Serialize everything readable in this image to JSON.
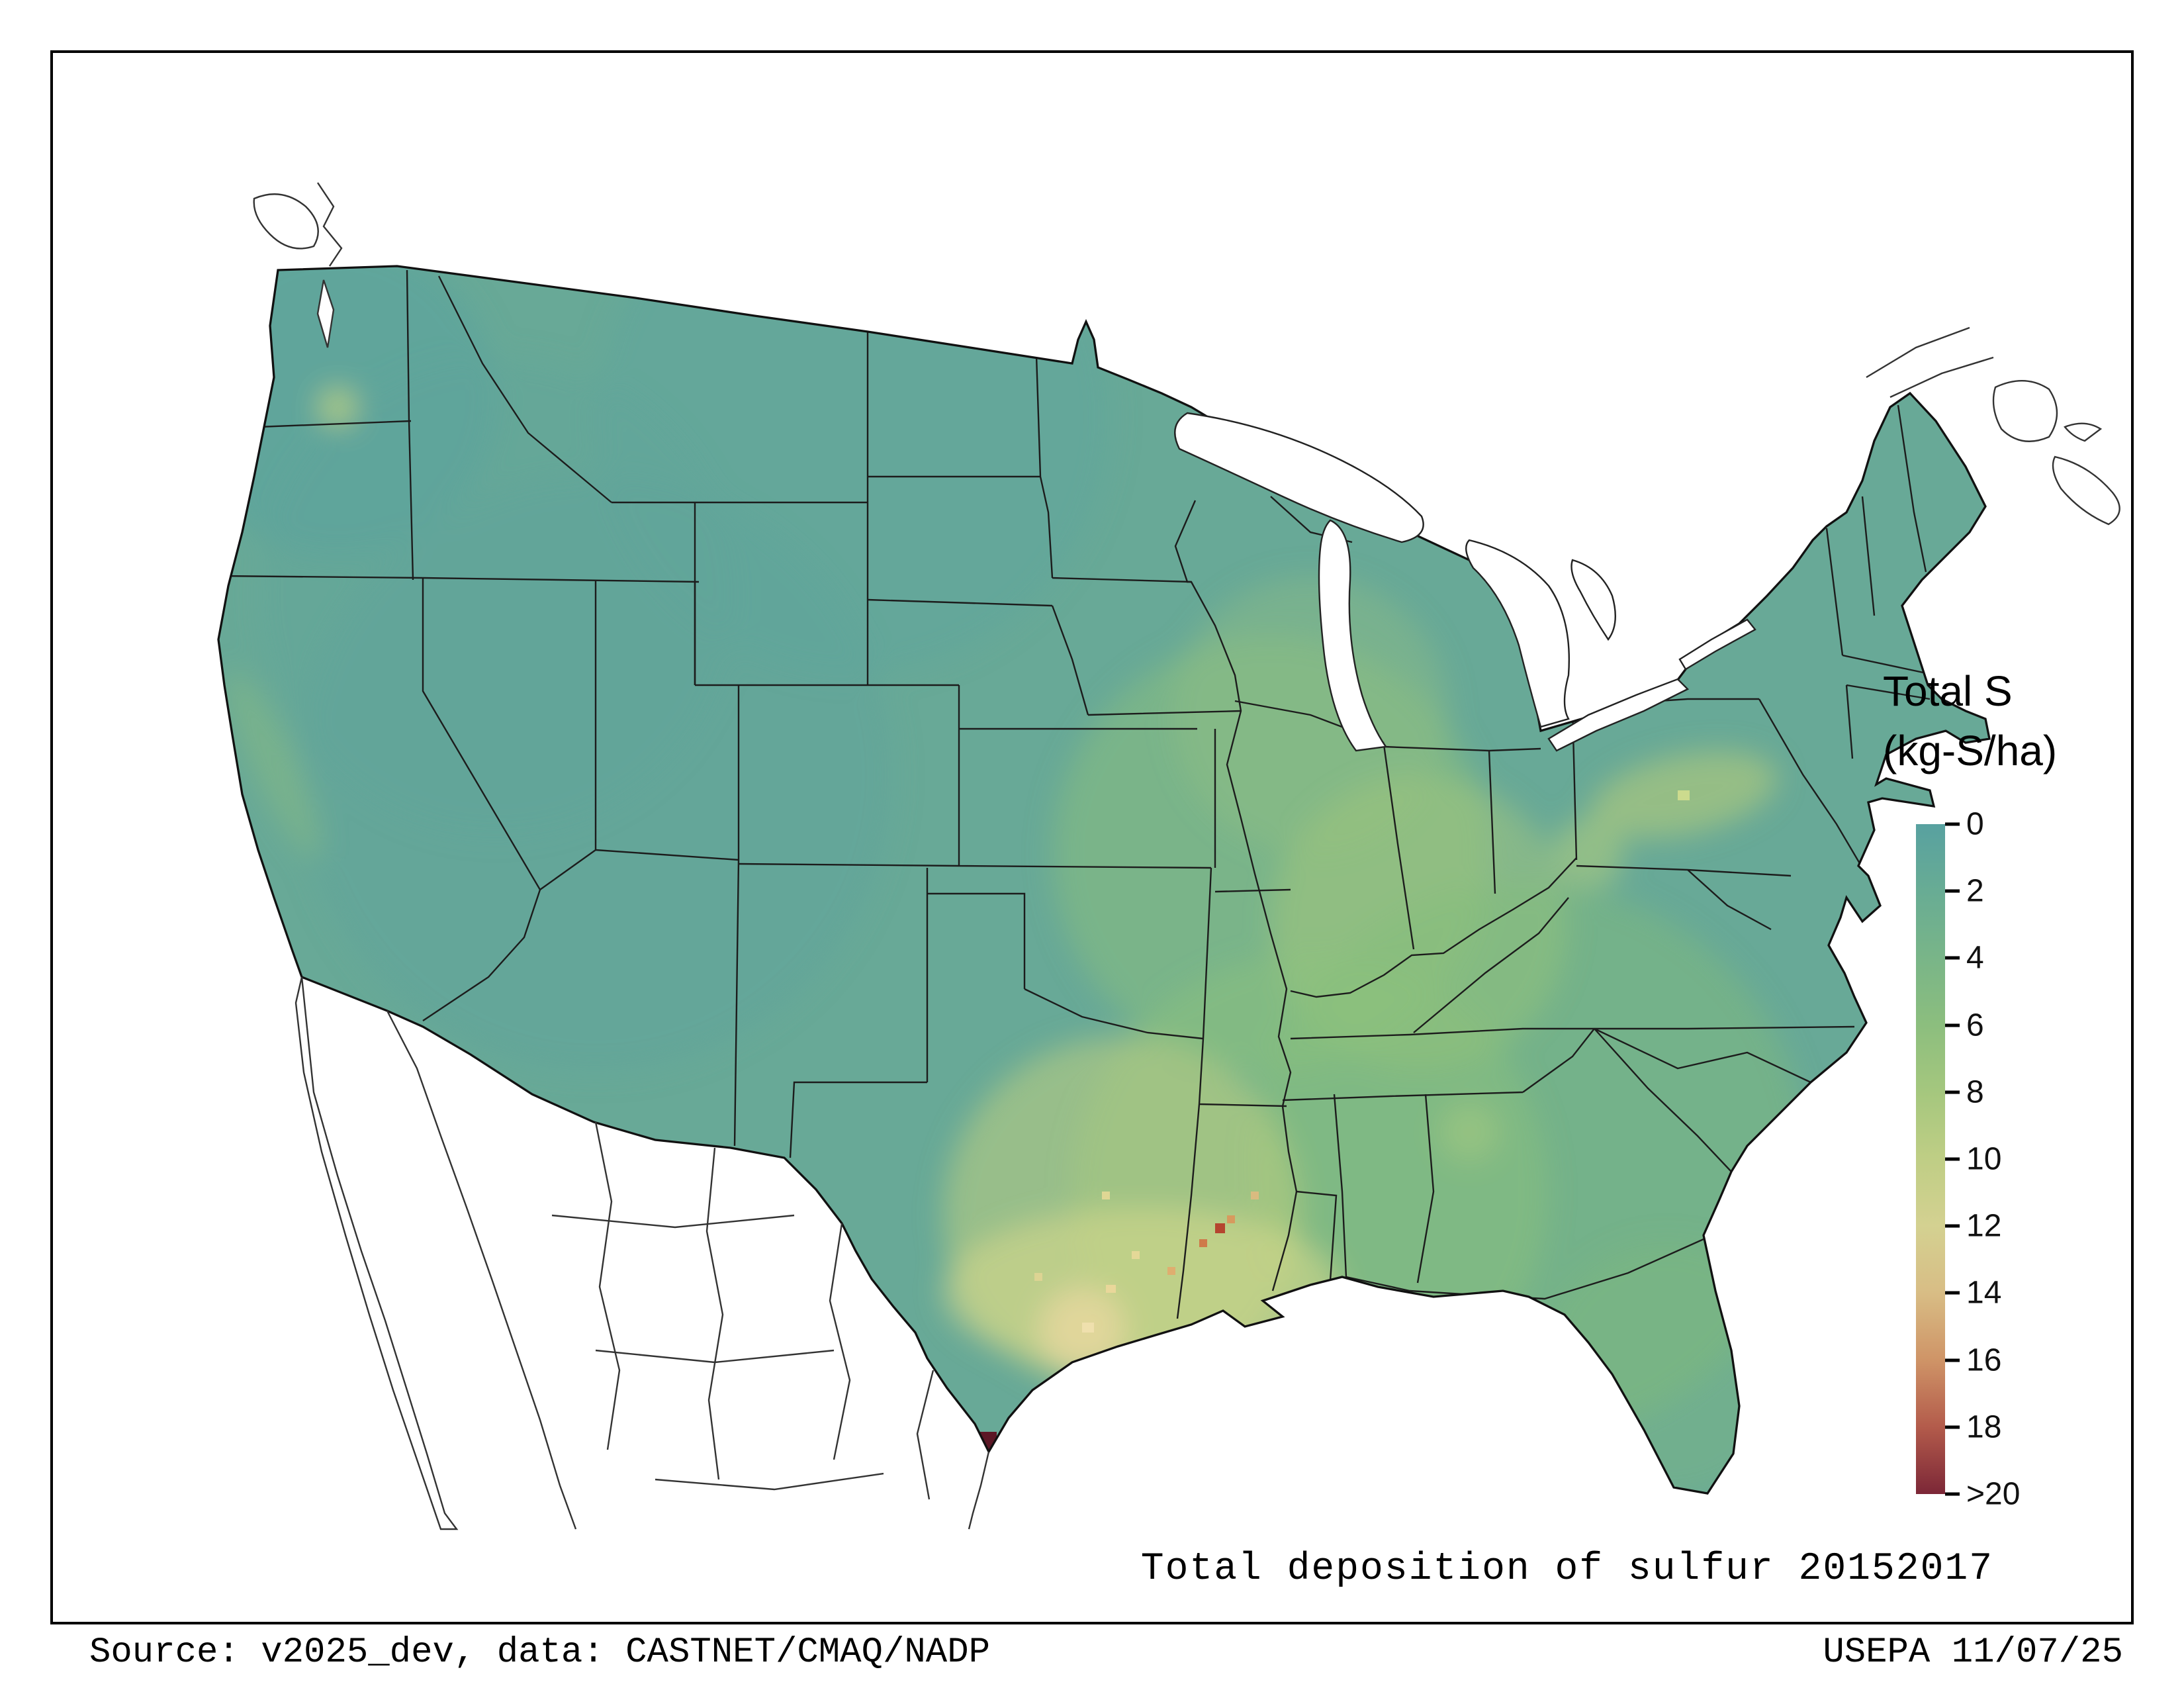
{
  "caption": "Total deposition of sulfur 20152017",
  "footer": {
    "source": "Source: v2025_dev, data: CASTNET/CMAQ/NADP",
    "agency_date": "USEPA 11/07/25"
  },
  "legend": {
    "title_line1": "Total S",
    "title_line2": "(kg-S/ha)",
    "ticks": [
      "0",
      "2",
      "4",
      "6",
      "8",
      "10",
      "12",
      "14",
      "16",
      "18",
      ">20"
    ],
    "colors": [
      "#58a1a0",
      "#68ac94",
      "#79b588",
      "#8cbe7e",
      "#a5c77e",
      "#bfce85",
      "#d4d191",
      "#d8bd85",
      "#cf9467",
      "#b35b4b",
      "#7c2737"
    ],
    "base_map_color": "#68a997"
  },
  "chart_data": {
    "type": "heatmap",
    "title": "Total deposition of sulfur 20152017",
    "variable": "Total S",
    "units": "kg-S/ha",
    "colorbar_tick_labels": [
      "0",
      "2",
      "4",
      "6",
      "8",
      "10",
      "12",
      "14",
      "16",
      "18",
      ">20"
    ],
    "legend_position": "right"
  }
}
